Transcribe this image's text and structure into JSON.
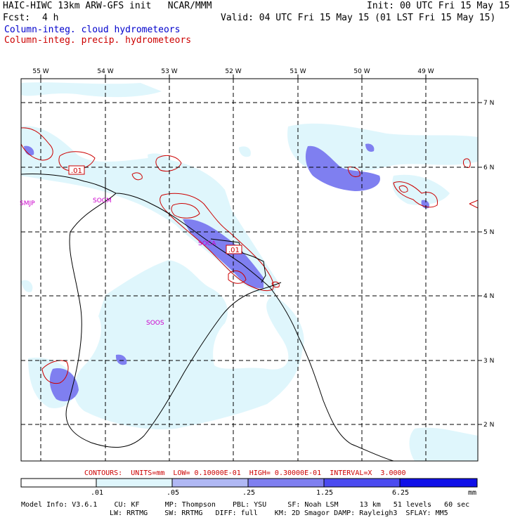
{
  "header": {
    "title_left": "HAIC-HIWC 13km ARW-GFS init   NCAR/MMM",
    "init": "Init: 00 UTC Fri 15 May 15",
    "fcst_label": "Fcst:",
    "fcst_value": "4 h",
    "valid": "Valid: 04 UTC Fri 15 May 15 (01 LST Fri 15 May 15)",
    "field_cloud": "Column-integ. cloud hydrometeors",
    "field_precip": "Column-integ. precip. hydrometeors"
  },
  "map": {
    "lon_labels": [
      "55 W",
      "54 W",
      "53 W",
      "52 W",
      "51 W",
      "50 W",
      "49 W"
    ],
    "lat_labels": [
      "7 N",
      "6 N",
      "5 N",
      "4 N",
      "3 N",
      "2 N"
    ],
    "stations": [
      "SMJP",
      "SOCM",
      "SOCA",
      "SOOS"
    ],
    "contour_labels": [
      ".01",
      ".01"
    ]
  },
  "contours_line": "CONTOURS:  UNITS=mm  LOW= 0.10000E-01  HIGH= 0.30000E-01  INTERVAL=X  3.0000",
  "colorbar": {
    "ticks": [
      ".01",
      ".05",
      ".25",
      "1.25",
      "6.25"
    ],
    "unit": "mm",
    "colors": [
      "#ffffff",
      "#dff6fc",
      "#b0b8f4",
      "#7f7ff0",
      "#4b4bf0",
      "#1010e8"
    ]
  },
  "footer": {
    "line1": "Model Info: V3.6.1    CU: KF      MP: Thompson    PBL: YSU     SF: Noah LSM     13 km   51 levels   60 sec",
    "line2": "LW: RRTMG    SW: RRTMG   DIFF: full    KM: 2D Smagor DAMP: Rayleigh3  SFLAY: MM5"
  }
}
